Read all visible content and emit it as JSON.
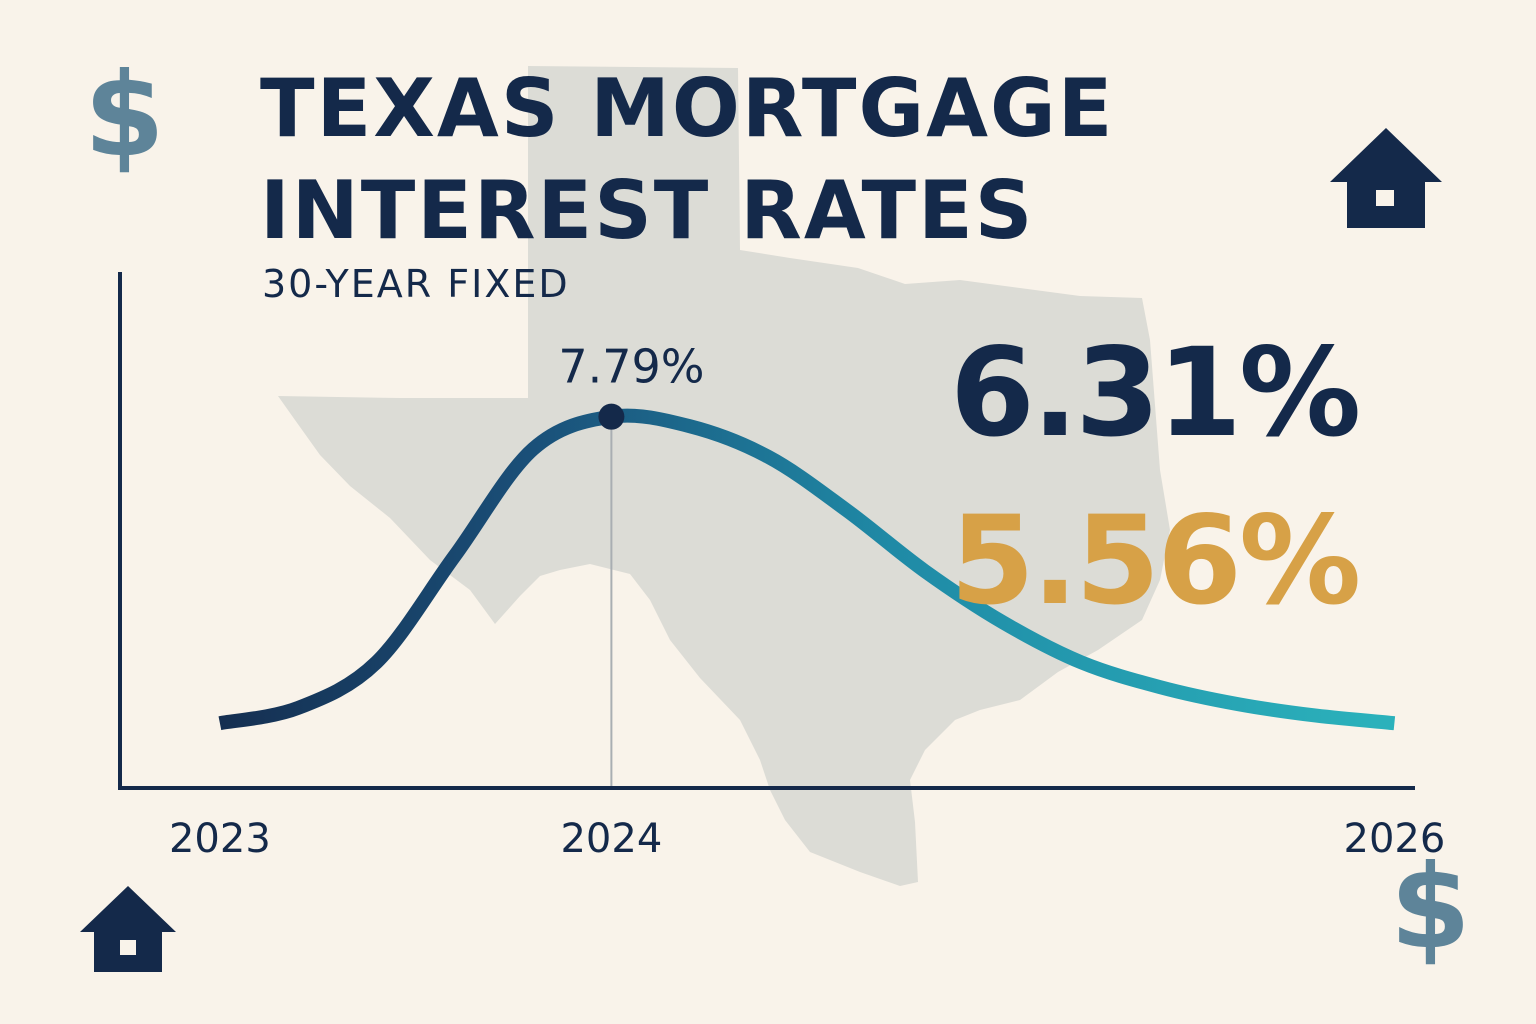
{
  "header": {
    "title_line1": "TEXAS MORTGAGE",
    "title_line2": "INTEREST RATES",
    "subtitle": "30-YEAR FIXED"
  },
  "stats": {
    "current_rate": "6.31%",
    "forecast_rate": "5.56%"
  },
  "icons": [
    "dollar-sign-icon",
    "house-icon",
    "house-icon",
    "dollar-sign-icon"
  ],
  "glyphs": {
    "dollar": "$"
  },
  "colors": {
    "background": "#f9f3ea",
    "navy": "#14294a",
    "gold": "#d7a147",
    "teal": "#2bb1bb",
    "steel_blue": "#5e8499",
    "map_gray": "#dcdcd6"
  },
  "chart_data": {
    "type": "line",
    "x": [
      2023.0,
      2023.2,
      2023.4,
      2023.6,
      2023.8,
      2024.0,
      2024.2,
      2024.4,
      2024.6,
      2024.8,
      2025.0,
      2025.2,
      2025.4,
      2025.6,
      2025.8,
      2026.0
    ],
    "values": [
      6.18,
      6.26,
      6.5,
      7.06,
      7.62,
      7.79,
      7.74,
      7.58,
      7.3,
      6.98,
      6.71,
      6.5,
      6.37,
      6.28,
      6.22,
      6.18
    ],
    "x_ticks": [
      "2023",
      "2024",
      "2026"
    ],
    "x_tick_values": [
      2023,
      2024,
      2026
    ],
    "xlim": [
      2022.75,
      2026.05
    ],
    "ylim": [
      5.85,
      8.55
    ],
    "annotation": {
      "x": 2024.0,
      "y": 7.79,
      "label": "7.79%"
    },
    "title": "",
    "xlabel": "",
    "ylabel": "",
    "grid": false,
    "legend": "none"
  }
}
